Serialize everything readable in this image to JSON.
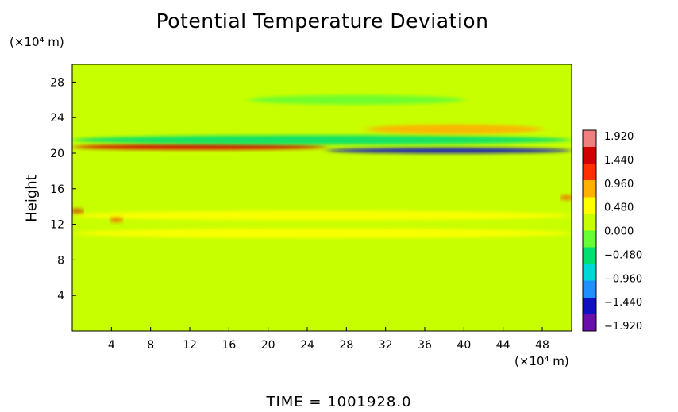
{
  "chart_data": {
    "type": "heatmap",
    "title": "Potential Temperature Deviation",
    "ylabel": "Height",
    "xlabel": "",
    "x_unit_label": "(×10⁴ m)",
    "y_unit_label": "(×10⁴ m)",
    "xlim": [
      0,
      51
    ],
    "ylim": [
      0,
      30
    ],
    "x_ticks": [
      4,
      8,
      12,
      16,
      20,
      24,
      28,
      32,
      36,
      40,
      44,
      48
    ],
    "y_ticks": [
      4,
      8,
      12,
      16,
      20,
      24,
      28
    ],
    "colorbar": {
      "ticks": [
        "1.920",
        "1.440",
        "0.960",
        "0.480",
        "0.000",
        "−0.480",
        "−0.960",
        "−1.440",
        "−1.920"
      ],
      "range": [
        -1.92,
        1.92
      ],
      "colors": [
        "#6a0dad",
        "#1010c0",
        "#1e90ff",
        "#00d8d8",
        "#00e070",
        "#66ff33",
        "#c8ff00",
        "#ffff00",
        "#ffb000",
        "#ff3000",
        "#d00000",
        "#f08080"
      ]
    },
    "background_value": 0.05,
    "features": [
      {
        "x": [
          0,
          26
        ],
        "y": 20.7,
        "value": 1.3
      },
      {
        "x": [
          26,
          51
        ],
        "y": 20.3,
        "value": -1.4
      },
      {
        "x": [
          0,
          51
        ],
        "y": 21.5,
        "value": -0.6
      },
      {
        "x": [
          30,
          48
        ],
        "y": 22.7,
        "value": 0.9
      },
      {
        "x": [
          0,
          51
        ],
        "y": 13.0,
        "value": 0.5
      },
      {
        "x": [
          0,
          51
        ],
        "y": 11.0,
        "value": 0.45
      },
      {
        "x": [
          18,
          40
        ],
        "y": 26.0,
        "value": -0.25
      },
      {
        "x": [
          50,
          51
        ],
        "y": 15.0,
        "value": 1.2
      },
      {
        "x": [
          4,
          5
        ],
        "y": 12.5,
        "value": 1.2
      },
      {
        "x": [
          0,
          1
        ],
        "y": 13.5,
        "value": 1.5
      }
    ]
  },
  "footer": {
    "time_label": "TIME  =  1001928.0"
  }
}
